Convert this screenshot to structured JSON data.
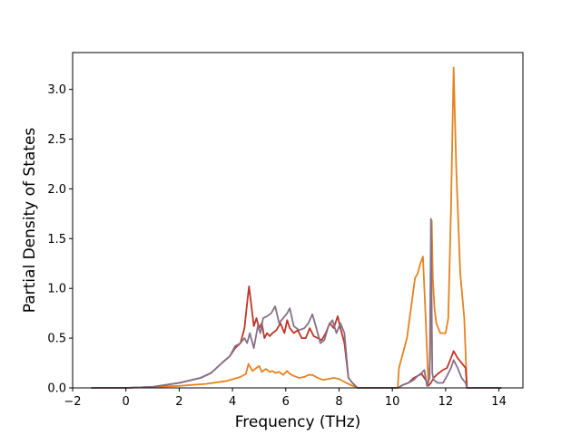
{
  "chart_data": {
    "type": "line",
    "title": "",
    "xlabel": "Frequency (THz)",
    "ylabel": "Partial Density of States",
    "xlim": [
      -2.0,
      14.9
    ],
    "ylim": [
      0.0,
      3.37
    ],
    "xticks": [
      -2,
      0,
      2,
      4,
      6,
      8,
      10,
      12,
      14
    ],
    "yticks": [
      0.0,
      0.5,
      1.0,
      1.5,
      2.0,
      2.5,
      3.0
    ],
    "xtick_labels": [
      "−2",
      "0",
      "2",
      "4",
      "6",
      "8",
      "10",
      "12",
      "14"
    ],
    "ytick_labels": [
      "0.0",
      "0.5",
      "1.0",
      "1.5",
      "2.0",
      "2.5",
      "3.0"
    ],
    "grid": false,
    "legend": "none",
    "series": [
      {
        "color": "#e6821e",
        "x": [
          -1.3,
          0.0,
          1.0,
          2.0,
          3.0,
          3.8,
          4.3,
          4.5,
          4.6,
          4.75,
          4.9,
          5.0,
          5.1,
          5.25,
          5.4,
          5.5,
          5.6,
          5.75,
          5.9,
          6.05,
          6.15,
          6.3,
          6.5,
          6.7,
          6.85,
          7.0,
          7.2,
          7.4,
          7.6,
          7.8,
          8.0,
          8.2,
          8.35,
          8.5,
          8.65,
          8.7,
          10.2,
          10.25,
          10.4,
          10.55,
          10.7,
          10.85,
          10.95,
          11.05,
          11.15,
          11.25,
          11.35,
          11.42,
          11.48,
          11.52,
          11.58,
          11.65,
          11.8,
          12.0,
          12.1,
          12.2,
          12.3,
          12.4,
          12.55,
          12.7,
          12.8,
          14.1
        ],
        "y": [
          0.0,
          0.0,
          0.01,
          0.02,
          0.04,
          0.07,
          0.11,
          0.14,
          0.24,
          0.17,
          0.2,
          0.22,
          0.16,
          0.19,
          0.16,
          0.17,
          0.15,
          0.16,
          0.13,
          0.17,
          0.14,
          0.12,
          0.1,
          0.11,
          0.13,
          0.13,
          0.1,
          0.08,
          0.09,
          0.1,
          0.09,
          0.06,
          0.04,
          0.02,
          0.01,
          0.0,
          0.0,
          0.2,
          0.35,
          0.5,
          0.8,
          1.1,
          1.15,
          1.25,
          1.32,
          0.7,
          0.05,
          0.3,
          1.68,
          1.1,
          0.8,
          0.65,
          0.55,
          0.55,
          0.7,
          1.8,
          3.22,
          2.2,
          1.15,
          0.7,
          0.0,
          0.0
        ]
      },
      {
        "color": "#bf3527",
        "x": [
          -1.3,
          0.0,
          1.0,
          2.0,
          2.8,
          3.2,
          3.6,
          3.9,
          4.1,
          4.3,
          4.45,
          4.55,
          4.62,
          4.7,
          4.8,
          4.9,
          5.0,
          5.1,
          5.2,
          5.3,
          5.4,
          5.5,
          5.65,
          5.8,
          5.95,
          6.05,
          6.15,
          6.3,
          6.45,
          6.6,
          6.75,
          6.9,
          7.05,
          7.2,
          7.35,
          7.5,
          7.65,
          7.8,
          7.95,
          8.05,
          8.2,
          8.35,
          8.5,
          8.65,
          8.7,
          10.2,
          10.4,
          10.6,
          10.8,
          10.95,
          11.1,
          11.25,
          11.35,
          11.45,
          11.55,
          11.7,
          11.9,
          12.05,
          12.2,
          12.3,
          12.45,
          12.6,
          12.75,
          12.8,
          14.1
        ],
        "y": [
          0.0,
          0.0,
          0.01,
          0.05,
          0.1,
          0.15,
          0.25,
          0.32,
          0.4,
          0.45,
          0.6,
          0.85,
          1.02,
          0.85,
          0.62,
          0.7,
          0.6,
          0.65,
          0.5,
          0.55,
          0.52,
          0.55,
          0.58,
          0.65,
          0.55,
          0.68,
          0.6,
          0.55,
          0.58,
          0.5,
          0.5,
          0.6,
          0.52,
          0.5,
          0.48,
          0.55,
          0.65,
          0.6,
          0.72,
          0.6,
          0.45,
          0.1,
          0.05,
          0.01,
          0.0,
          0.0,
          0.03,
          0.05,
          0.1,
          0.12,
          0.14,
          0.08,
          0.02,
          0.05,
          0.1,
          0.14,
          0.18,
          0.2,
          0.3,
          0.37,
          0.3,
          0.25,
          0.2,
          0.0,
          0.0
        ]
      },
      {
        "color": "#85718a",
        "x": [
          -1.3,
          0.0,
          1.0,
          2.0,
          2.8,
          3.2,
          3.6,
          3.9,
          4.1,
          4.3,
          4.45,
          4.55,
          4.65,
          4.8,
          4.95,
          5.05,
          5.15,
          5.3,
          5.45,
          5.6,
          5.75,
          5.9,
          6.05,
          6.15,
          6.3,
          6.5,
          6.7,
          6.85,
          7.0,
          7.15,
          7.3,
          7.45,
          7.6,
          7.75,
          7.9,
          8.05,
          8.2,
          8.35,
          8.5,
          8.65,
          8.7,
          10.2,
          10.4,
          10.6,
          10.8,
          10.95,
          11.1,
          11.2,
          11.3,
          11.4,
          11.45,
          11.5,
          11.55,
          11.7,
          11.9,
          12.05,
          12.2,
          12.3,
          12.45,
          12.6,
          12.75,
          12.8,
          14.1
        ],
        "y": [
          0.0,
          0.0,
          0.01,
          0.05,
          0.1,
          0.15,
          0.25,
          0.32,
          0.42,
          0.45,
          0.5,
          0.45,
          0.55,
          0.4,
          0.62,
          0.55,
          0.7,
          0.72,
          0.75,
          0.82,
          0.65,
          0.7,
          0.75,
          0.8,
          0.62,
          0.58,
          0.6,
          0.65,
          0.74,
          0.6,
          0.45,
          0.48,
          0.62,
          0.68,
          0.55,
          0.65,
          0.55,
          0.1,
          0.05,
          0.01,
          0.0,
          0.0,
          0.03,
          0.05,
          0.08,
          0.12,
          0.15,
          0.18,
          0.02,
          0.1,
          1.7,
          0.15,
          0.08,
          0.05,
          0.05,
          0.12,
          0.2,
          0.28,
          0.2,
          0.1,
          0.05,
          0.0,
          0.0
        ]
      }
    ]
  }
}
